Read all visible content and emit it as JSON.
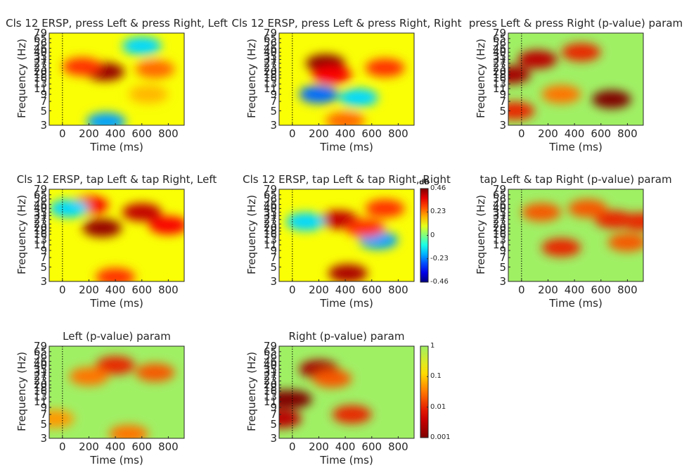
{
  "figure": {
    "panels": [
      {
        "title": "Cls 12 ERSP, press Left & press Right, Left"
      },
      {
        "title": "Cls 12 ERSP, press Left & press Right, Right"
      },
      {
        "title": "press Left & press Right (p-value) param"
      },
      {
        "title": "Cls 12 ERSP, tap Left & tap Right, Left"
      },
      {
        "title": "Cls 12 ERSP, tap Left & tap Right, Right"
      },
      {
        "title": "tap Left & tap Right (p-value) param"
      },
      {
        "title": "Left (p-value) param"
      },
      {
        "title": "Right (p-value) param"
      }
    ],
    "xlabel": "Time (ms)",
    "ylabel": "Frequency (Hz)",
    "xticks": [
      "0",
      "200",
      "400",
      "600",
      "800"
    ],
    "yticks": [
      "3",
      "5",
      "7",
      "9",
      "11",
      "13",
      "16",
      "18",
      "20",
      "23",
      "27",
      "31",
      "35",
      "40",
      "46",
      "56",
      "65",
      "79"
    ]
  },
  "colorbars": {
    "ersp": {
      "unit": "dB",
      "ticks": [
        "0.46",
        "0.23",
        "0",
        "-0.23",
        "-0.46"
      ]
    },
    "pvalue": {
      "ticks": [
        "1",
        "0.1",
        "0.01",
        "0.001"
      ]
    }
  },
  "chart_data": [
    {
      "type": "heatmap",
      "title": "Cls 12 ERSP, press Left & press Right, Left",
      "xlabel": "Time (ms)",
      "ylabel": "Frequency (Hz)",
      "xlim": [
        -100,
        920
      ],
      "ylim": [
        3,
        79
      ],
      "yscale": "log",
      "clim": [
        -0.46,
        0.46
      ],
      "colormap": "jet",
      "blobs": [
        {
          "t": 320,
          "f": 20,
          "v": 0.44
        },
        {
          "t": 150,
          "f": 24,
          "v": 0.3
        },
        {
          "t": 700,
          "f": 22,
          "v": 0.25
        },
        {
          "t": 330,
          "f": 3.4,
          "v": -0.2
        },
        {
          "t": 600,
          "f": 50,
          "v": -0.15
        },
        {
          "t": 650,
          "f": 9,
          "v": 0.18
        }
      ]
    },
    {
      "type": "heatmap",
      "title": "Cls 12 ERSP, press Left & press Right, Right",
      "xlabel": "Time (ms)",
      "ylabel": "Frequency (Hz)",
      "xlim": [
        -100,
        920
      ],
      "ylim": [
        3,
        79
      ],
      "yscale": "log",
      "clim": [
        -0.46,
        0.46
      ],
      "colormap": "jet",
      "blobs": [
        {
          "t": 250,
          "f": 27,
          "v": 0.45
        },
        {
          "t": 300,
          "f": 18,
          "v": 0.35
        },
        {
          "t": 700,
          "f": 23,
          "v": 0.3
        },
        {
          "t": 200,
          "f": 9,
          "v": -0.25
        },
        {
          "t": 500,
          "f": 8,
          "v": -0.15
        },
        {
          "t": 400,
          "f": 3.5,
          "v": 0.25
        }
      ]
    },
    {
      "type": "heatmap",
      "title": "press Left & press Right (p-value) param",
      "xlabel": "Time (ms)",
      "ylabel": "Frequency (Hz)",
      "xlim": [
        -100,
        920
      ],
      "ylim": [
        3,
        79
      ],
      "yscale": "log",
      "clim": [
        0.001,
        1
      ],
      "colormap": "p-value",
      "blobs": [
        {
          "t": 680,
          "f": 7.5,
          "v": 0.001
        },
        {
          "t": 120,
          "f": 31,
          "v": 0.003
        },
        {
          "t": -80,
          "f": 18,
          "v": 0.002
        },
        {
          "t": -50,
          "f": 5,
          "v": 0.01
        },
        {
          "t": 450,
          "f": 40,
          "v": 0.01
        },
        {
          "t": 300,
          "f": 9,
          "v": 0.03
        }
      ]
    },
    {
      "type": "heatmap",
      "title": "Cls 12 ERSP, tap Left & tap Right, Left",
      "xlabel": "Time (ms)",
      "ylabel": "Frequency (Hz)",
      "xlim": [
        -100,
        920
      ],
      "ylim": [
        3,
        79
      ],
      "yscale": "log",
      "clim": [
        -0.46,
        0.46
      ],
      "colormap": "jet",
      "blobs": [
        {
          "t": 300,
          "f": 20,
          "v": 0.44
        },
        {
          "t": 600,
          "f": 35,
          "v": 0.4
        },
        {
          "t": 800,
          "f": 22,
          "v": 0.35
        },
        {
          "t": 200,
          "f": 45,
          "v": 0.35
        },
        {
          "t": 400,
          "f": 3.5,
          "v": 0.3
        },
        {
          "t": 50,
          "f": 40,
          "v": -0.15
        }
      ]
    },
    {
      "type": "heatmap",
      "title": "Cls 12 ERSP, tap Left & tap Right, Right",
      "xlabel": "Time (ms)",
      "ylabel": "Frequency (Hz)",
      "xlim": [
        -100,
        920
      ],
      "ylim": [
        3,
        79
      ],
      "yscale": "log",
      "clim": [
        -0.46,
        0.46
      ],
      "colormap": "jet",
      "blobs": [
        {
          "t": 420,
          "f": 4,
          "v": 0.42
        },
        {
          "t": 350,
          "f": 27,
          "v": 0.4
        },
        {
          "t": 700,
          "f": 40,
          "v": 0.3
        },
        {
          "t": 650,
          "f": 13,
          "v": -0.2
        },
        {
          "t": 100,
          "f": 25,
          "v": -0.15
        },
        {
          "t": 550,
          "f": 20,
          "v": 0.3
        }
      ]
    },
    {
      "type": "heatmap",
      "title": "tap Left & tap Right (p-value) param",
      "xlabel": "Time (ms)",
      "ylabel": "Frequency (Hz)",
      "xlim": [
        -100,
        920
      ],
      "ylim": [
        3,
        79
      ],
      "yscale": "log",
      "clim": [
        0.001,
        1
      ],
      "colormap": "p-value",
      "blobs": [
        {
          "t": 300,
          "f": 10,
          "v": 0.01
        },
        {
          "t": 700,
          "f": 27,
          "v": 0.01
        },
        {
          "t": 500,
          "f": 40,
          "v": 0.02
        },
        {
          "t": 150,
          "f": 35,
          "v": 0.02
        },
        {
          "t": 800,
          "f": 12,
          "v": 0.02
        },
        {
          "t": 900,
          "f": 25,
          "v": 0.01
        }
      ]
    },
    {
      "type": "heatmap",
      "title": "Left (p-value) param",
      "xlabel": "Time (ms)",
      "ylabel": "Frequency (Hz)",
      "xlim": [
        -100,
        920
      ],
      "ylim": [
        3,
        79
      ],
      "yscale": "log",
      "clim": [
        0.001,
        1
      ],
      "colormap": "p-value",
      "blobs": [
        {
          "t": 400,
          "f": 40,
          "v": 0.01
        },
        {
          "t": 700,
          "f": 31,
          "v": 0.02
        },
        {
          "t": 200,
          "f": 27,
          "v": 0.03
        },
        {
          "t": 500,
          "f": 3.5,
          "v": 0.03
        },
        {
          "t": -60,
          "f": 6,
          "v": 0.05
        }
      ]
    },
    {
      "type": "heatmap",
      "title": "Right (p-value) param",
      "xlabel": "Time (ms)",
      "ylabel": "Frequency (Hz)",
      "xlim": [
        -100,
        920
      ],
      "ylim": [
        3,
        79
      ],
      "yscale": "log",
      "clim": [
        0.001,
        1
      ],
      "colormap": "p-value",
      "blobs": [
        {
          "t": -70,
          "f": 12,
          "v": 0.001
        },
        {
          "t": 0,
          "f": 12,
          "v": 0.001
        },
        {
          "t": 200,
          "f": 35,
          "v": 0.002
        },
        {
          "t": -80,
          "f": 6,
          "v": 0.003
        },
        {
          "t": 450,
          "f": 7,
          "v": 0.01
        },
        {
          "t": 300,
          "f": 25,
          "v": 0.02
        }
      ]
    }
  ]
}
